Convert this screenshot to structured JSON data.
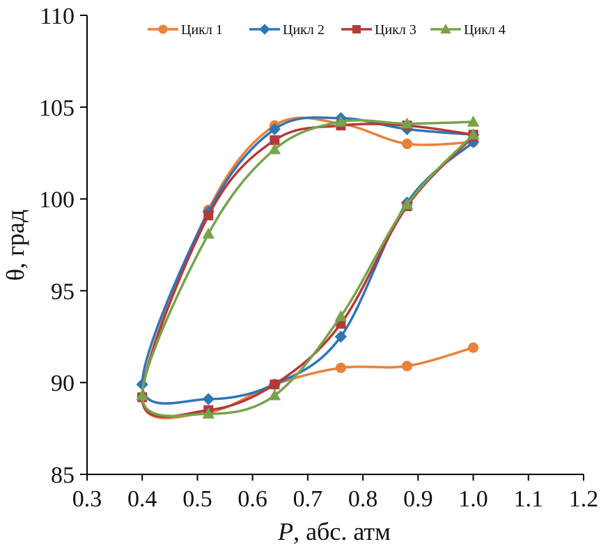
{
  "chart_data": {
    "type": "line",
    "title": "",
    "xlabel_italic": "P",
    "xlabel_rest": ", абс. атм",
    "ylabel": "θ, град",
    "xlim": [
      0.3,
      1.2
    ],
    "ylim": [
      85,
      110
    ],
    "xticks": [
      "0.3",
      "0.4",
      "0.5",
      "0.6",
      "0.7",
      "0.8",
      "0.9",
      "1.0",
      "1.1",
      "1.2"
    ],
    "yticks": [
      "85",
      "90",
      "95",
      "100",
      "105",
      "110"
    ],
    "grid": false,
    "legend_position": "top",
    "series": [
      {
        "name": "Цикл 1",
        "color": "#E8823A",
        "marker": "circle",
        "x": [
          1.0,
          0.88,
          0.76,
          0.64,
          0.52,
          0.4,
          0.52,
          0.64,
          0.76,
          0.88,
          1.0
        ],
        "y": [
          91.9,
          90.9,
          90.8,
          89.9,
          88.4,
          89.2,
          99.4,
          104.0,
          104.1,
          103.0,
          103.1
        ]
      },
      {
        "name": "Цикл 2",
        "color": "#2E75B6",
        "marker": "diamond",
        "x": [
          1.0,
          0.88,
          0.76,
          0.64,
          0.52,
          0.4,
          0.52,
          0.64,
          0.76,
          0.88,
          1.0
        ],
        "y": [
          103.1,
          99.8,
          92.5,
          89.9,
          89.1,
          89.9,
          99.3,
          103.8,
          104.4,
          103.8,
          103.5
        ]
      },
      {
        "name": "Цикл 3",
        "color": "#B4393A",
        "marker": "square",
        "x": [
          1.0,
          0.88,
          0.76,
          0.64,
          0.52,
          0.4,
          0.52,
          0.64,
          0.76,
          0.88,
          1.0
        ],
        "y": [
          103.4,
          99.6,
          93.2,
          89.9,
          88.5,
          89.2,
          99.1,
          103.2,
          104.0,
          104.0,
          103.5
        ]
      },
      {
        "name": "Цикл 4",
        "color": "#77A34B",
        "marker": "triangle",
        "x": [
          1.0,
          0.88,
          0.76,
          0.64,
          0.52,
          0.4,
          0.52,
          0.64,
          0.76,
          0.88,
          1.0
        ],
        "y": [
          103.5,
          99.7,
          93.6,
          89.3,
          88.3,
          89.3,
          98.1,
          102.7,
          104.2,
          104.1,
          104.2
        ]
      }
    ]
  }
}
